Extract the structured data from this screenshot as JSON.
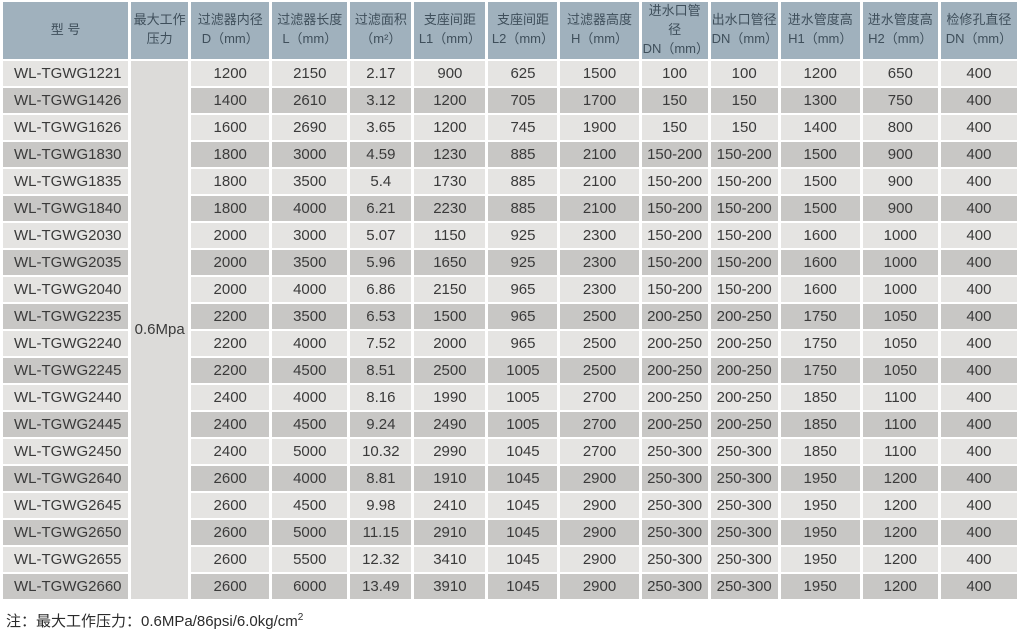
{
  "table": {
    "headers": [
      {
        "line1": "型 号",
        "line2": ""
      },
      {
        "line1": "最大工作",
        "line2": "压力"
      },
      {
        "line1": "过滤器内径",
        "line2": "D（mm）"
      },
      {
        "line1": "过滤器长度",
        "line2": "L（mm）"
      },
      {
        "line1": "过滤面积",
        "line2": "（m²）"
      },
      {
        "line1": "支座间距",
        "line2": "L1（mm）"
      },
      {
        "line1": "支座间距",
        "line2": "L2（mm）"
      },
      {
        "line1": "过滤器高度",
        "line2": "H（mm）"
      },
      {
        "line1": "进水口管径",
        "line2": "DN（mm）"
      },
      {
        "line1": "出水口管径",
        "line2": "DN（mm）"
      },
      {
        "line1": "进水管度高",
        "line2": "H1（mm）"
      },
      {
        "line1": "进水管度高",
        "line2": "H2（mm）"
      },
      {
        "line1": "检修孔直径",
        "line2": "DN（mm）"
      }
    ],
    "pressure_value": "0.6Mpa",
    "rows": [
      {
        "model": "WL-TGWG1221",
        "values": [
          "1200",
          "2150",
          "2.17",
          "900",
          "625",
          "1500",
          "100",
          "100",
          "1200",
          "650",
          "400"
        ]
      },
      {
        "model": "WL-TGWG1426",
        "values": [
          "1400",
          "2610",
          "3.12",
          "1200",
          "705",
          "1700",
          "150",
          "150",
          "1300",
          "750",
          "400"
        ]
      },
      {
        "model": "WL-TGWG1626",
        "values": [
          "1600",
          "2690",
          "3.65",
          "1200",
          "745",
          "1900",
          "150",
          "150",
          "1400",
          "800",
          "400"
        ]
      },
      {
        "model": "WL-TGWG1830",
        "values": [
          "1800",
          "3000",
          "4.59",
          "1230",
          "885",
          "2100",
          "150-200",
          "150-200",
          "1500",
          "900",
          "400"
        ]
      },
      {
        "model": "WL-TGWG1835",
        "values": [
          "1800",
          "3500",
          "5.4",
          "1730",
          "885",
          "2100",
          "150-200",
          "150-200",
          "1500",
          "900",
          "400"
        ]
      },
      {
        "model": "WL-TGWG1840",
        "values": [
          "1800",
          "4000",
          "6.21",
          "2230",
          "885",
          "2100",
          "150-200",
          "150-200",
          "1500",
          "900",
          "400"
        ]
      },
      {
        "model": "WL-TGWG2030",
        "values": [
          "2000",
          "3000",
          "5.07",
          "1150",
          "925",
          "2300",
          "150-200",
          "150-200",
          "1600",
          "1000",
          "400"
        ]
      },
      {
        "model": "WL-TGWG2035",
        "values": [
          "2000",
          "3500",
          "5.96",
          "1650",
          "925",
          "2300",
          "150-200",
          "150-200",
          "1600",
          "1000",
          "400"
        ]
      },
      {
        "model": "WL-TGWG2040",
        "values": [
          "2000",
          "4000",
          "6.86",
          "2150",
          "965",
          "2300",
          "150-200",
          "150-200",
          "1600",
          "1000",
          "400"
        ]
      },
      {
        "model": "WL-TGWG2235",
        "values": [
          "2200",
          "3500",
          "6.53",
          "1500",
          "965",
          "2500",
          "200-250",
          "200-250",
          "1750",
          "1050",
          "400"
        ]
      },
      {
        "model": "WL-TGWG2240",
        "values": [
          "2200",
          "4000",
          "7.52",
          "2000",
          "965",
          "2500",
          "200-250",
          "200-250",
          "1750",
          "1050",
          "400"
        ]
      },
      {
        "model": "WL-TGWG2245",
        "values": [
          "2200",
          "4500",
          "8.51",
          "2500",
          "1005",
          "2500",
          "200-250",
          "200-250",
          "1750",
          "1050",
          "400"
        ]
      },
      {
        "model": "WL-TGWG2440",
        "values": [
          "2400",
          "4000",
          "8.16",
          "1990",
          "1005",
          "2700",
          "200-250",
          "200-250",
          "1850",
          "1100",
          "400"
        ]
      },
      {
        "model": "WL-TGWG2445",
        "values": [
          "2400",
          "4500",
          "9.24",
          "2490",
          "1005",
          "2700",
          "200-250",
          "200-250",
          "1850",
          "1100",
          "400"
        ]
      },
      {
        "model": "WL-TGWG2450",
        "values": [
          "2400",
          "5000",
          "10.32",
          "2990",
          "1045",
          "2700",
          "250-300",
          "250-300",
          "1850",
          "1100",
          "400"
        ]
      },
      {
        "model": "WL-TGWG2640",
        "values": [
          "2600",
          "4000",
          "8.81",
          "1910",
          "1045",
          "2900",
          "250-300",
          "250-300",
          "1950",
          "1200",
          "400"
        ]
      },
      {
        "model": "WL-TGWG2645",
        "values": [
          "2600",
          "4500",
          "9.98",
          "2410",
          "1045",
          "2900",
          "250-300",
          "250-300",
          "1950",
          "1200",
          "400"
        ]
      },
      {
        "model": "WL-TGWG2650",
        "values": [
          "2600",
          "5000",
          "11.15",
          "2910",
          "1045",
          "2900",
          "250-300",
          "250-300",
          "1950",
          "1200",
          "400"
        ]
      },
      {
        "model": "WL-TGWG2655",
        "values": [
          "2600",
          "5500",
          "12.32",
          "3410",
          "1045",
          "2900",
          "250-300",
          "250-300",
          "1950",
          "1200",
          "400"
        ]
      },
      {
        "model": "WL-TGWG2660",
        "values": [
          "2600",
          "6000",
          "13.49",
          "3910",
          "1045",
          "2900",
          "250-300",
          "250-300",
          "1950",
          "1200",
          "400"
        ]
      }
    ]
  },
  "note": {
    "prefix": "注：最大工作压力：0.6MPa/86psi/6.0kg/cm",
    "sup": "2"
  }
}
